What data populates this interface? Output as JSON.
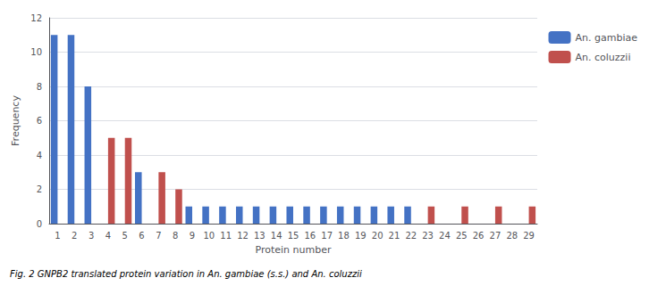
{
  "chart_data": {
    "type": "bar",
    "caption": "Fig. 2 GNPB2 translated protein variation in An. gambiae (s.s.) and An. coluzzii",
    "xlabel": "Protein number",
    "ylabel": "Frequency",
    "categories": [
      "1",
      "2",
      "3",
      "4",
      "5",
      "6",
      "7",
      "8",
      "9",
      "10",
      "11",
      "12",
      "13",
      "14",
      "15",
      "16",
      "17",
      "18",
      "19",
      "20",
      "21",
      "22",
      "23",
      "24",
      "25",
      "26",
      "27",
      "28",
      "29"
    ],
    "series": [
      {
        "name": "An. gambiae",
        "color": "#4472C4",
        "values": [
          11,
          11,
          8,
          0,
          0,
          3,
          0,
          0,
          1,
          1,
          1,
          1,
          1,
          1,
          1,
          1,
          1,
          1,
          1,
          1,
          1,
          1,
          0,
          0,
          0,
          0,
          0,
          0,
          0
        ]
      },
      {
        "name": "An. coluzzii",
        "color": "#C0504D",
        "values": [
          0,
          0,
          0,
          5,
          5,
          0,
          3,
          2,
          0,
          0,
          0,
          0,
          0,
          0,
          0,
          0,
          0,
          0,
          0,
          0,
          0,
          0,
          1,
          0,
          1,
          0,
          1,
          0,
          1
        ]
      }
    ],
    "ylim": [
      0,
      12
    ],
    "yticks": [
      0,
      2,
      4,
      6,
      8,
      10,
      12
    ],
    "grid": true,
    "legend": "right"
  }
}
